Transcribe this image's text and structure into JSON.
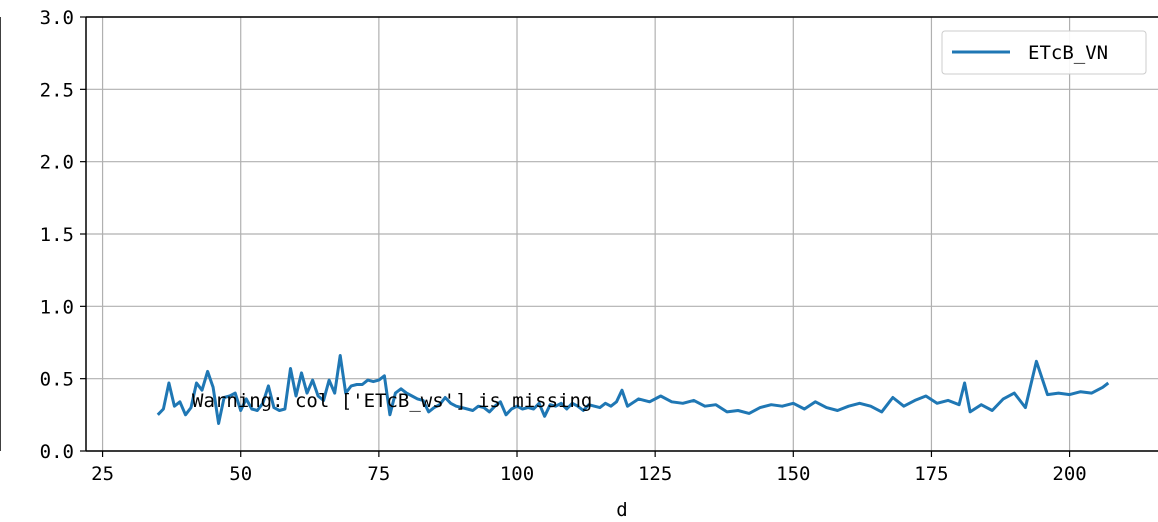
{
  "chart_data": {
    "type": "line",
    "title": "",
    "xlabel": "d",
    "ylabel": "",
    "xlim": [
      22,
      216
    ],
    "ylim": [
      0.0,
      3.0
    ],
    "x_ticks": [
      25,
      50,
      75,
      100,
      125,
      150,
      175,
      200
    ],
    "y_ticks": [
      0.0,
      0.5,
      1.0,
      1.5,
      2.0,
      2.5,
      3.0
    ],
    "x_tick_labels": [
      "25",
      "50",
      "75",
      "100",
      "125",
      "150",
      "175",
      "200"
    ],
    "y_tick_labels": [
      "0.0",
      "0.5",
      "1.0",
      "1.5",
      "2.0",
      "2.5",
      "3.0"
    ],
    "grid": true,
    "legend_position": "top-right",
    "annotation": "Warning: col ['ETcB_ws'] is missing",
    "colors": {
      "series": "#1f77b4",
      "grid": "#b0b0b0",
      "axis": "#000000"
    },
    "series": [
      {
        "name": "ETcB_VN",
        "x": [
          35,
          36,
          37,
          38,
          39,
          40,
          41,
          42,
          43,
          44,
          45,
          46,
          47,
          48,
          49,
          50,
          51,
          52,
          53,
          54,
          55,
          56,
          57,
          58,
          59,
          60,
          61,
          62,
          63,
          64,
          65,
          66,
          67,
          68,
          69,
          70,
          71,
          72,
          73,
          74,
          75,
          76,
          77,
          78,
          79,
          80,
          81,
          82,
          83,
          84,
          85,
          86,
          87,
          88,
          89,
          90,
          91,
          92,
          93,
          94,
          95,
          96,
          97,
          98,
          99,
          100,
          101,
          102,
          103,
          104,
          105,
          106,
          107,
          108,
          109,
          110,
          111,
          112,
          113,
          114,
          115,
          116,
          117,
          118,
          119,
          120,
          122,
          124,
          126,
          128,
          130,
          132,
          134,
          136,
          138,
          140,
          142,
          144,
          146,
          148,
          150,
          152,
          154,
          156,
          158,
          160,
          162,
          164,
          166,
          168,
          170,
          172,
          174,
          176,
          178,
          180,
          181,
          182,
          184,
          186,
          188,
          190,
          192,
          194,
          196,
          198,
          200,
          202,
          204,
          206,
          207
        ],
        "values": [
          0.25,
          0.29,
          0.47,
          0.31,
          0.34,
          0.25,
          0.3,
          0.47,
          0.42,
          0.55,
          0.44,
          0.19,
          0.37,
          0.38,
          0.4,
          0.28,
          0.36,
          0.29,
          0.28,
          0.33,
          0.45,
          0.3,
          0.28,
          0.29,
          0.57,
          0.38,
          0.54,
          0.4,
          0.49,
          0.38,
          0.35,
          0.49,
          0.4,
          0.66,
          0.4,
          0.45,
          0.46,
          0.46,
          0.49,
          0.48,
          0.49,
          0.52,
          0.25,
          0.4,
          0.43,
          0.4,
          0.38,
          0.36,
          0.35,
          0.27,
          0.3,
          0.32,
          0.37,
          0.33,
          0.31,
          0.3,
          0.29,
          0.28,
          0.31,
          0.3,
          0.27,
          0.31,
          0.34,
          0.25,
          0.29,
          0.31,
          0.29,
          0.3,
          0.29,
          0.33,
          0.24,
          0.32,
          0.31,
          0.33,
          0.29,
          0.33,
          0.31,
          0.28,
          0.32,
          0.31,
          0.3,
          0.33,
          0.31,
          0.34,
          0.42,
          0.31,
          0.36,
          0.34,
          0.38,
          0.34,
          0.33,
          0.35,
          0.31,
          0.32,
          0.27,
          0.28,
          0.26,
          0.3,
          0.32,
          0.31,
          0.33,
          0.29,
          0.34,
          0.3,
          0.28,
          0.31,
          0.33,
          0.31,
          0.27,
          0.37,
          0.31,
          0.35,
          0.38,
          0.33,
          0.35,
          0.32,
          0.47,
          0.27,
          0.32,
          0.28,
          0.36,
          0.4,
          0.3,
          0.62,
          0.39,
          0.4,
          0.39,
          0.41,
          0.4,
          0.44,
          0.47
        ]
      }
    ]
  }
}
